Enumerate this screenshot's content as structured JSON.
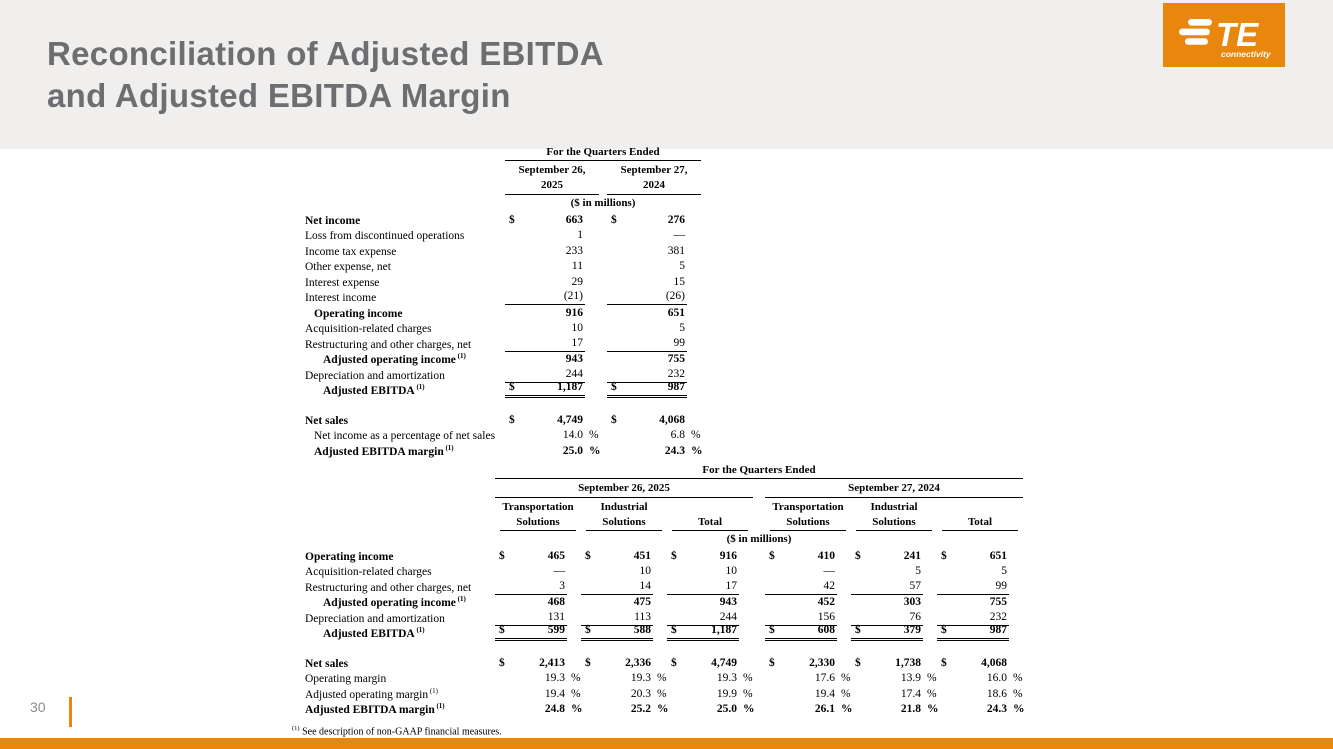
{
  "slide": {
    "title": [
      "Reconciliation of Adjusted EBITDA",
      "and Adjusted EBITDA Margin"
    ],
    "page_number": "30",
    "footnote_sup": "(1)",
    "footnote_text": "See description of non-GAAP financial measures.",
    "logo": {
      "brand": "TE",
      "tagline": "connectivity"
    }
  },
  "colors": {
    "accent_orange": "#E8860D",
    "title_gray": "#6D6E71",
    "header_band": "#F0EFED",
    "page_number_gray": "#8C8C8C"
  },
  "table1": {
    "title": "For the Quarters Ended",
    "columns": [
      [
        "September 26,",
        "2025"
      ],
      [
        "September 27,",
        "2024"
      ]
    ],
    "units": "($ in millions)",
    "rows": [
      {
        "label": "Net income",
        "bold": true,
        "cur": true,
        "values": [
          "663",
          "276"
        ]
      },
      {
        "label": "Loss from discontinued operations",
        "values": [
          "1",
          "—"
        ]
      },
      {
        "label": "Income tax expense",
        "values": [
          "233",
          "381"
        ]
      },
      {
        "label": "Other expense, net",
        "values": [
          "11",
          "5"
        ]
      },
      {
        "label": "Interest expense",
        "values": [
          "29",
          "15"
        ]
      },
      {
        "label": "Interest income",
        "ul": true,
        "values": [
          "(21)",
          "(26)"
        ]
      },
      {
        "label": "Operating income",
        "bold": true,
        "ind": 1,
        "values": [
          "916",
          "651"
        ]
      },
      {
        "label": "Acquisition-related charges",
        "values": [
          "10",
          "5"
        ]
      },
      {
        "label": "Restructuring and other charges, net",
        "ul": true,
        "values": [
          "17",
          "99"
        ]
      },
      {
        "label": "Adjusted operating income",
        "sup": "(1)",
        "bold": true,
        "ind": 2,
        "values": [
          "943",
          "755"
        ]
      },
      {
        "label": "Depreciation and amortization",
        "ul": true,
        "values": [
          "244",
          "232"
        ]
      },
      {
        "label": "Adjusted EBITDA",
        "sup": "(1)",
        "bold": true,
        "ind": 2,
        "cur": true,
        "dul": true,
        "values": [
          "1,187",
          "987"
        ]
      },
      {
        "gap": true
      },
      {
        "label": "Net sales",
        "bold": true,
        "cur": true,
        "values": [
          "4,749",
          "4,068"
        ]
      },
      {
        "label": "Net income as a percentage of net sales",
        "ind": 1,
        "pct": true,
        "values": [
          "14.0",
          "6.8"
        ]
      },
      {
        "label": "Adjusted EBITDA margin",
        "sup": "(1)",
        "bold": true,
        "ind": 1,
        "pct": true,
        "values": [
          "25.0",
          "24.3"
        ]
      }
    ]
  },
  "table2": {
    "title": "For the Quarters Ended",
    "periods": [
      "September 26, 2025",
      "September 27, 2024"
    ],
    "segments": [
      [
        "Transportation",
        "Solutions"
      ],
      [
        "Industrial",
        "Solutions"
      ],
      [
        "Total"
      ]
    ],
    "units": "($ in millions)",
    "rows": [
      {
        "label": "Operating income",
        "bold": true,
        "cur": true,
        "values": [
          "465",
          "451",
          "916",
          "410",
          "241",
          "651"
        ]
      },
      {
        "label": "Acquisition-related charges",
        "values": [
          "—",
          "10",
          "10",
          "—",
          "5",
          "5"
        ]
      },
      {
        "label": "Restructuring and other charges, net",
        "ul": true,
        "values": [
          "3",
          "14",
          "17",
          "42",
          "57",
          "99"
        ]
      },
      {
        "label": "Adjusted operating income",
        "sup": "(1)",
        "bold": true,
        "ind": 2,
        "values": [
          "468",
          "475",
          "943",
          "452",
          "303",
          "755"
        ]
      },
      {
        "label": "Depreciation and amortization",
        "ul": true,
        "values": [
          "131",
          "113",
          "244",
          "156",
          "76",
          "232"
        ]
      },
      {
        "label": "Adjusted EBITDA",
        "sup": "(1)",
        "bold": true,
        "ind": 2,
        "cur": true,
        "dul": true,
        "values": [
          "599",
          "588",
          "1,187",
          "608",
          "379",
          "987"
        ]
      },
      {
        "gap": true
      },
      {
        "label": "Net sales",
        "bold": true,
        "cur": true,
        "values": [
          "2,413",
          "2,336",
          "4,749",
          "2,330",
          "1,738",
          "4,068"
        ]
      },
      {
        "label": "Operating margin",
        "pct": true,
        "values": [
          "19.3",
          "19.3",
          "19.3",
          "17.6",
          "13.9",
          "16.0"
        ]
      },
      {
        "label": "Adjusted operating margin",
        "sup": "(1)",
        "pct": true,
        "values": [
          "19.4",
          "20.3",
          "19.9",
          "19.4",
          "17.4",
          "18.6"
        ]
      },
      {
        "label": "Adjusted EBITDA margin",
        "sup": "(1)",
        "bold": true,
        "pct": true,
        "values": [
          "24.8",
          "25.2",
          "25.0",
          "26.1",
          "21.8",
          "24.3"
        ]
      }
    ]
  }
}
